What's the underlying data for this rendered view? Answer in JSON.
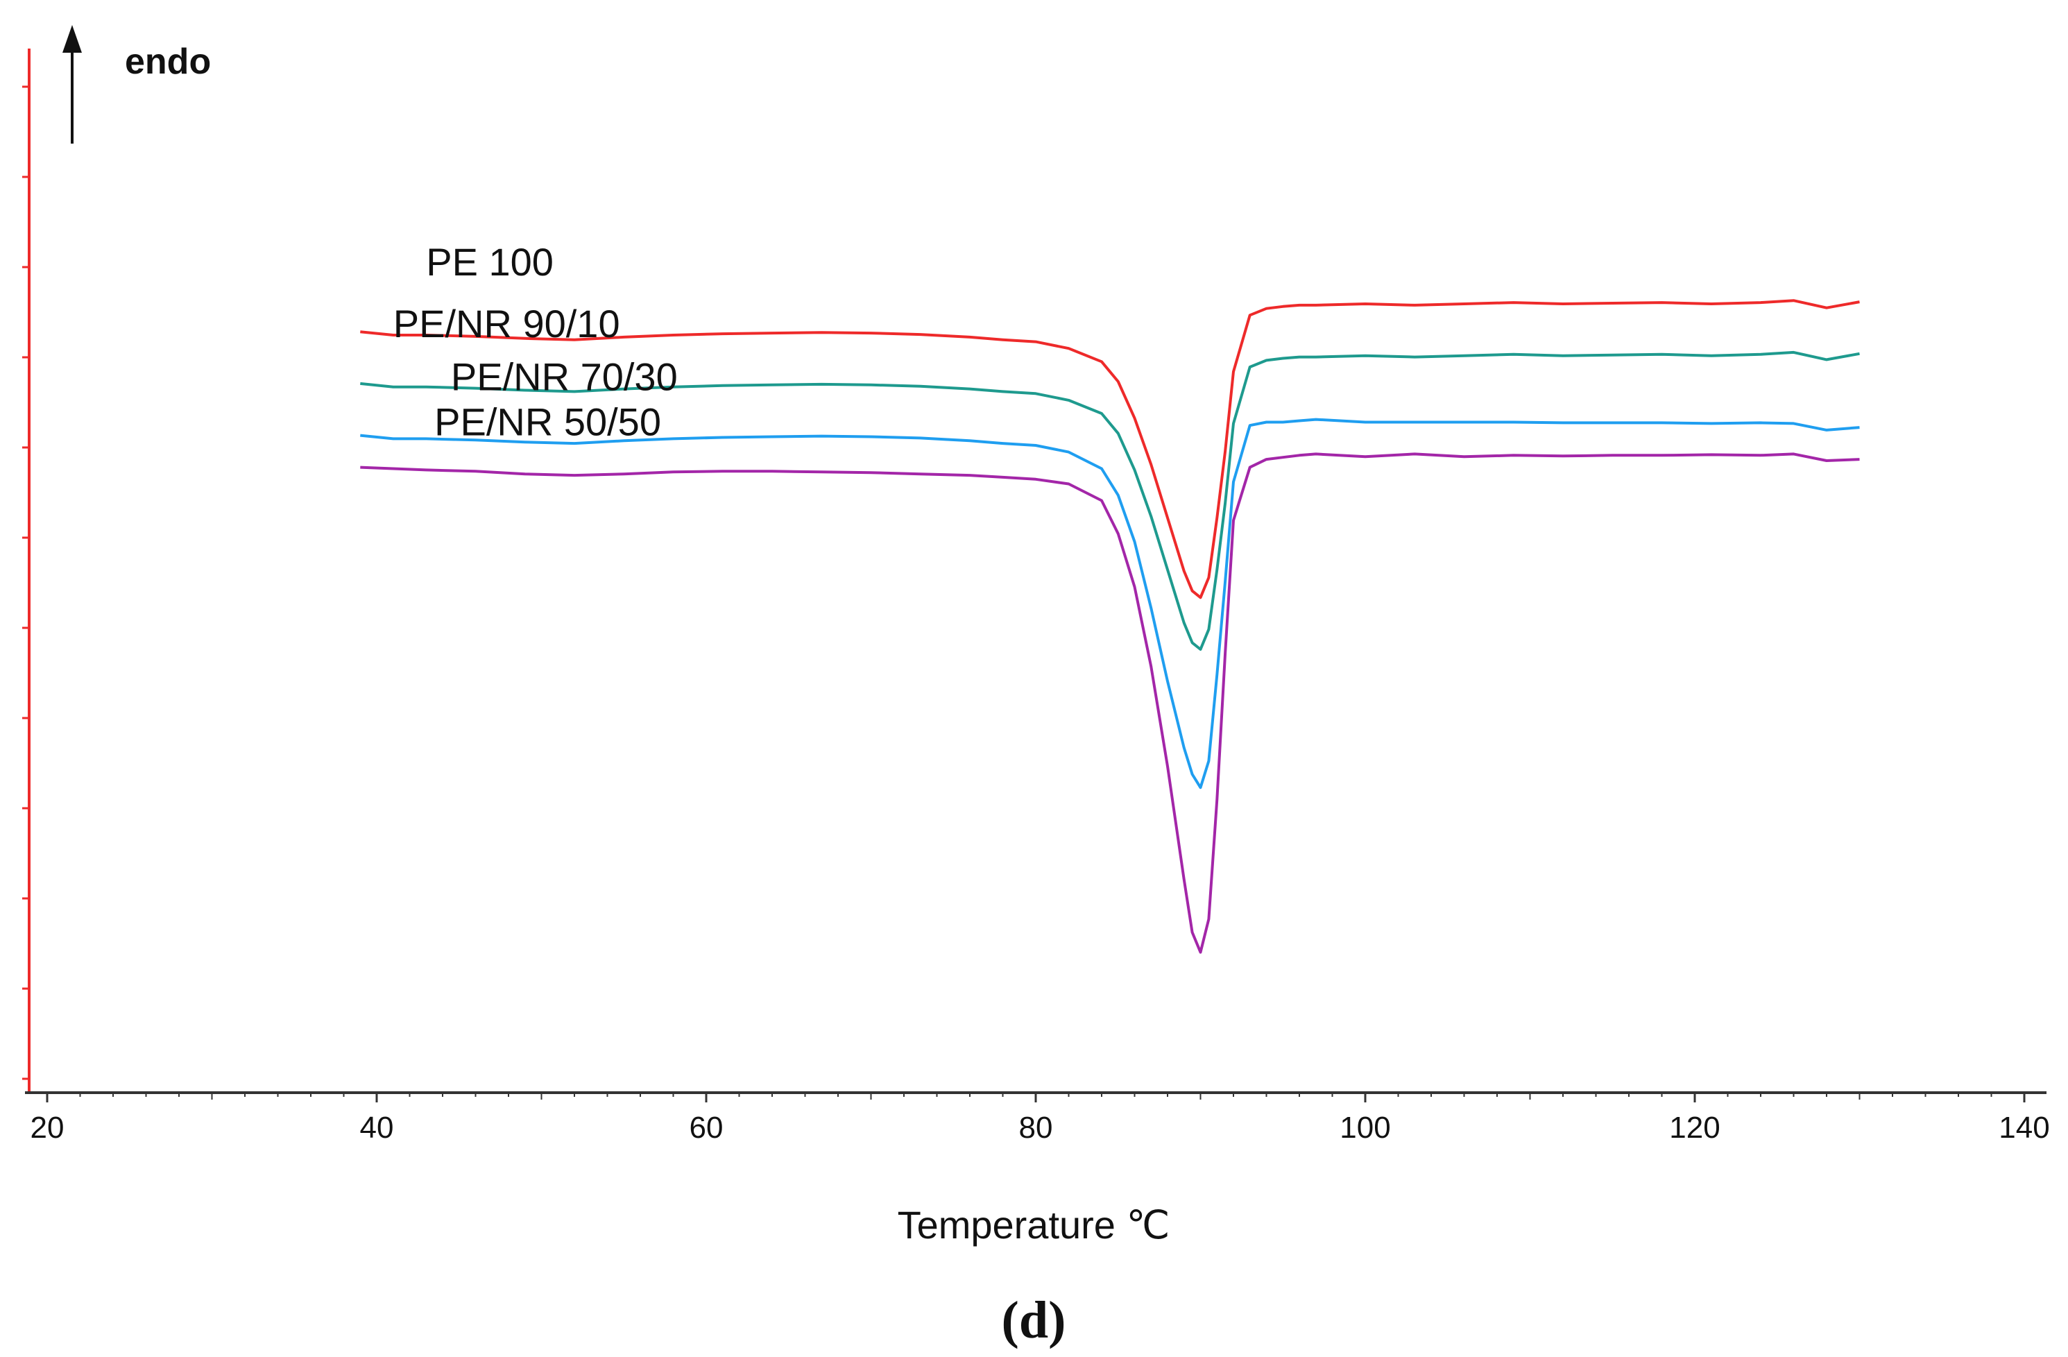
{
  "chart_data": {
    "type": "line",
    "title": "",
    "xlabel": "Temperature ℃",
    "ylabel": "",
    "xlim": [
      19,
      141
    ],
    "ylim": [
      -1.25,
      0.28
    ],
    "x_ticks": [
      20,
      40,
      60,
      80,
      100,
      120,
      140
    ],
    "endo_label": "endo",
    "panel_label": "(d)",
    "colors": {
      "y_axis": "#ee2a2a",
      "x_axis": "#333333",
      "text": "#111111"
    },
    "series": [
      {
        "name": "PE 100",
        "color": "#ee2a2a",
        "offset": 0.0,
        "label_pos": [
          43,
          0.085
        ],
        "x": [
          39,
          41,
          43,
          46,
          49,
          52,
          55,
          58,
          61,
          64,
          67,
          70,
          73,
          76,
          78,
          80,
          82,
          84,
          85,
          86,
          87,
          88,
          89,
          89.5,
          90,
          90.5,
          91,
          91.5,
          92,
          93,
          94,
          95,
          96,
          97,
          100,
          103,
          106,
          109,
          112,
          115,
          118,
          121,
          124,
          126,
          128,
          130
        ],
        "y": [
          0.0,
          -0.005,
          -0.005,
          -0.007,
          -0.01,
          -0.012,
          -0.008,
          -0.005,
          -0.003,
          -0.002,
          -0.001,
          -0.002,
          -0.004,
          -0.008,
          -0.012,
          -0.015,
          -0.025,
          -0.045,
          -0.075,
          -0.13,
          -0.2,
          -0.28,
          -0.36,
          -0.39,
          -0.4,
          -0.37,
          -0.28,
          -0.18,
          -0.06,
          0.025,
          0.035,
          0.038,
          0.04,
          0.04,
          0.042,
          0.04,
          0.042,
          0.044,
          0.042,
          0.043,
          0.044,
          0.042,
          0.044,
          0.047,
          0.036,
          0.045
        ]
      },
      {
        "name": "PE/NR 90/10",
        "color": "#1e9a8e",
        "offset": -0.078,
        "label_pos": [
          41,
          -0.008
        ],
        "x": [
          39,
          41,
          43,
          46,
          49,
          52,
          55,
          58,
          61,
          64,
          67,
          70,
          73,
          76,
          78,
          80,
          82,
          84,
          85,
          86,
          87,
          88,
          89,
          89.5,
          90,
          90.5,
          91,
          91.5,
          92,
          93,
          94,
          95,
          96,
          97,
          100,
          103,
          106,
          109,
          112,
          115,
          118,
          121,
          124,
          126,
          128,
          130
        ],
        "y": [
          0.0,
          -0.005,
          -0.005,
          -0.007,
          -0.01,
          -0.012,
          -0.008,
          -0.005,
          -0.003,
          -0.002,
          -0.001,
          -0.002,
          -0.004,
          -0.008,
          -0.012,
          -0.015,
          -0.025,
          -0.045,
          -0.075,
          -0.13,
          -0.2,
          -0.28,
          -0.36,
          -0.39,
          -0.4,
          -0.37,
          -0.28,
          -0.18,
          -0.06,
          0.025,
          0.035,
          0.038,
          0.04,
          0.04,
          0.042,
          0.04,
          0.042,
          0.044,
          0.042,
          0.043,
          0.044,
          0.042,
          0.044,
          0.047,
          0.036,
          0.045
        ]
      },
      {
        "name": "PE/NR 70/30",
        "color": "#1f9ef0",
        "offset": -0.156,
        "label_pos": [
          44.5,
          -0.088
        ],
        "x": [
          39,
          41,
          43,
          46,
          49,
          52,
          55,
          58,
          61,
          64,
          67,
          70,
          73,
          76,
          78,
          80,
          82,
          84,
          85,
          86,
          87,
          88,
          89,
          89.5,
          90,
          90.5,
          91,
          91.5,
          92,
          93,
          94,
          95,
          96,
          97,
          100,
          103,
          106,
          109,
          112,
          115,
          118,
          121,
          124,
          126,
          128,
          130
        ],
        "y": [
          0.0,
          -0.005,
          -0.005,
          -0.007,
          -0.01,
          -0.012,
          -0.008,
          -0.005,
          -0.003,
          -0.002,
          -0.001,
          -0.002,
          -0.004,
          -0.008,
          -0.012,
          -0.015,
          -0.025,
          -0.05,
          -0.09,
          -0.16,
          -0.26,
          -0.37,
          -0.47,
          -0.51,
          -0.53,
          -0.49,
          -0.36,
          -0.22,
          -0.07,
          0.015,
          0.02,
          0.02,
          0.022,
          0.024,
          0.02,
          0.02,
          0.02,
          0.02,
          0.019,
          0.019,
          0.019,
          0.018,
          0.019,
          0.018,
          0.008,
          0.012
        ]
      },
      {
        "name": "PE/NR 50/50",
        "color": "#a326a8",
        "offset": -0.204,
        "label_pos": [
          43.5,
          -0.156
        ],
        "x": [
          39,
          41,
          43,
          46,
          49,
          52,
          55,
          58,
          61,
          64,
          67,
          70,
          73,
          76,
          78,
          80,
          82,
          84,
          85,
          86,
          87,
          88,
          89,
          89.5,
          90,
          90.5,
          91,
          91.5,
          92,
          93,
          94,
          95,
          96,
          97,
          100,
          103,
          106,
          109,
          112,
          115,
          118,
          121,
          124,
          126,
          128,
          130
        ],
        "y": [
          0.0,
          -0.002,
          -0.004,
          -0.006,
          -0.01,
          -0.012,
          -0.01,
          -0.007,
          -0.006,
          -0.006,
          -0.007,
          -0.008,
          -0.01,
          -0.012,
          -0.015,
          -0.018,
          -0.025,
          -0.05,
          -0.1,
          -0.18,
          -0.3,
          -0.45,
          -0.62,
          -0.7,
          -0.73,
          -0.68,
          -0.5,
          -0.28,
          -0.08,
          0.0,
          0.012,
          0.015,
          0.018,
          0.02,
          0.016,
          0.02,
          0.016,
          0.018,
          0.017,
          0.018,
          0.018,
          0.019,
          0.018,
          0.02,
          0.01,
          0.012
        ]
      }
    ]
  }
}
